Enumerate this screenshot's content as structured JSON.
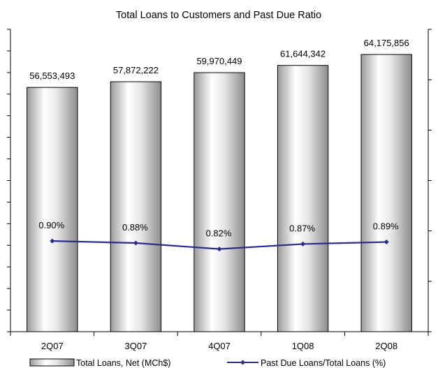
{
  "chart_data": {
    "type": "bar",
    "title": "Total Loans to Customers and Past Due Ratio",
    "categories": [
      "2Q07",
      "3Q07",
      "4Q07",
      "1Q08",
      "2Q08"
    ],
    "series": [
      {
        "name": "Total Loans, Net (MCh$)",
        "type": "bar",
        "axis": "left",
        "values": [
          56553493,
          57872222,
          59970449,
          61644342,
          64175856
        ],
        "labels": [
          "56,553,493",
          "57,872,222",
          "59,970,449",
          "61,644,342",
          "64,175,856"
        ]
      },
      {
        "name": "Past Due Loans/Total Loans (%)",
        "type": "line",
        "axis": "right",
        "values": [
          0.9,
          0.88,
          0.82,
          0.87,
          0.89
        ],
        "labels": [
          "0.90%",
          "0.88%",
          "0.82%",
          "0.87%",
          "0.89%"
        ]
      }
    ],
    "left_axis": {
      "ylim": [
        0,
        70000000
      ],
      "tick_labels_shown": false
    },
    "right_axis": {
      "ylim": [
        0,
        3.0
      ],
      "tick_labels_shown": false
    },
    "grid": false,
    "legend": "bottom",
    "colors": {
      "bar_edge": "#000000",
      "bar_fill": "#d4d4d4",
      "line": "#2b2b8c",
      "marker": "#2b2b8c"
    }
  }
}
